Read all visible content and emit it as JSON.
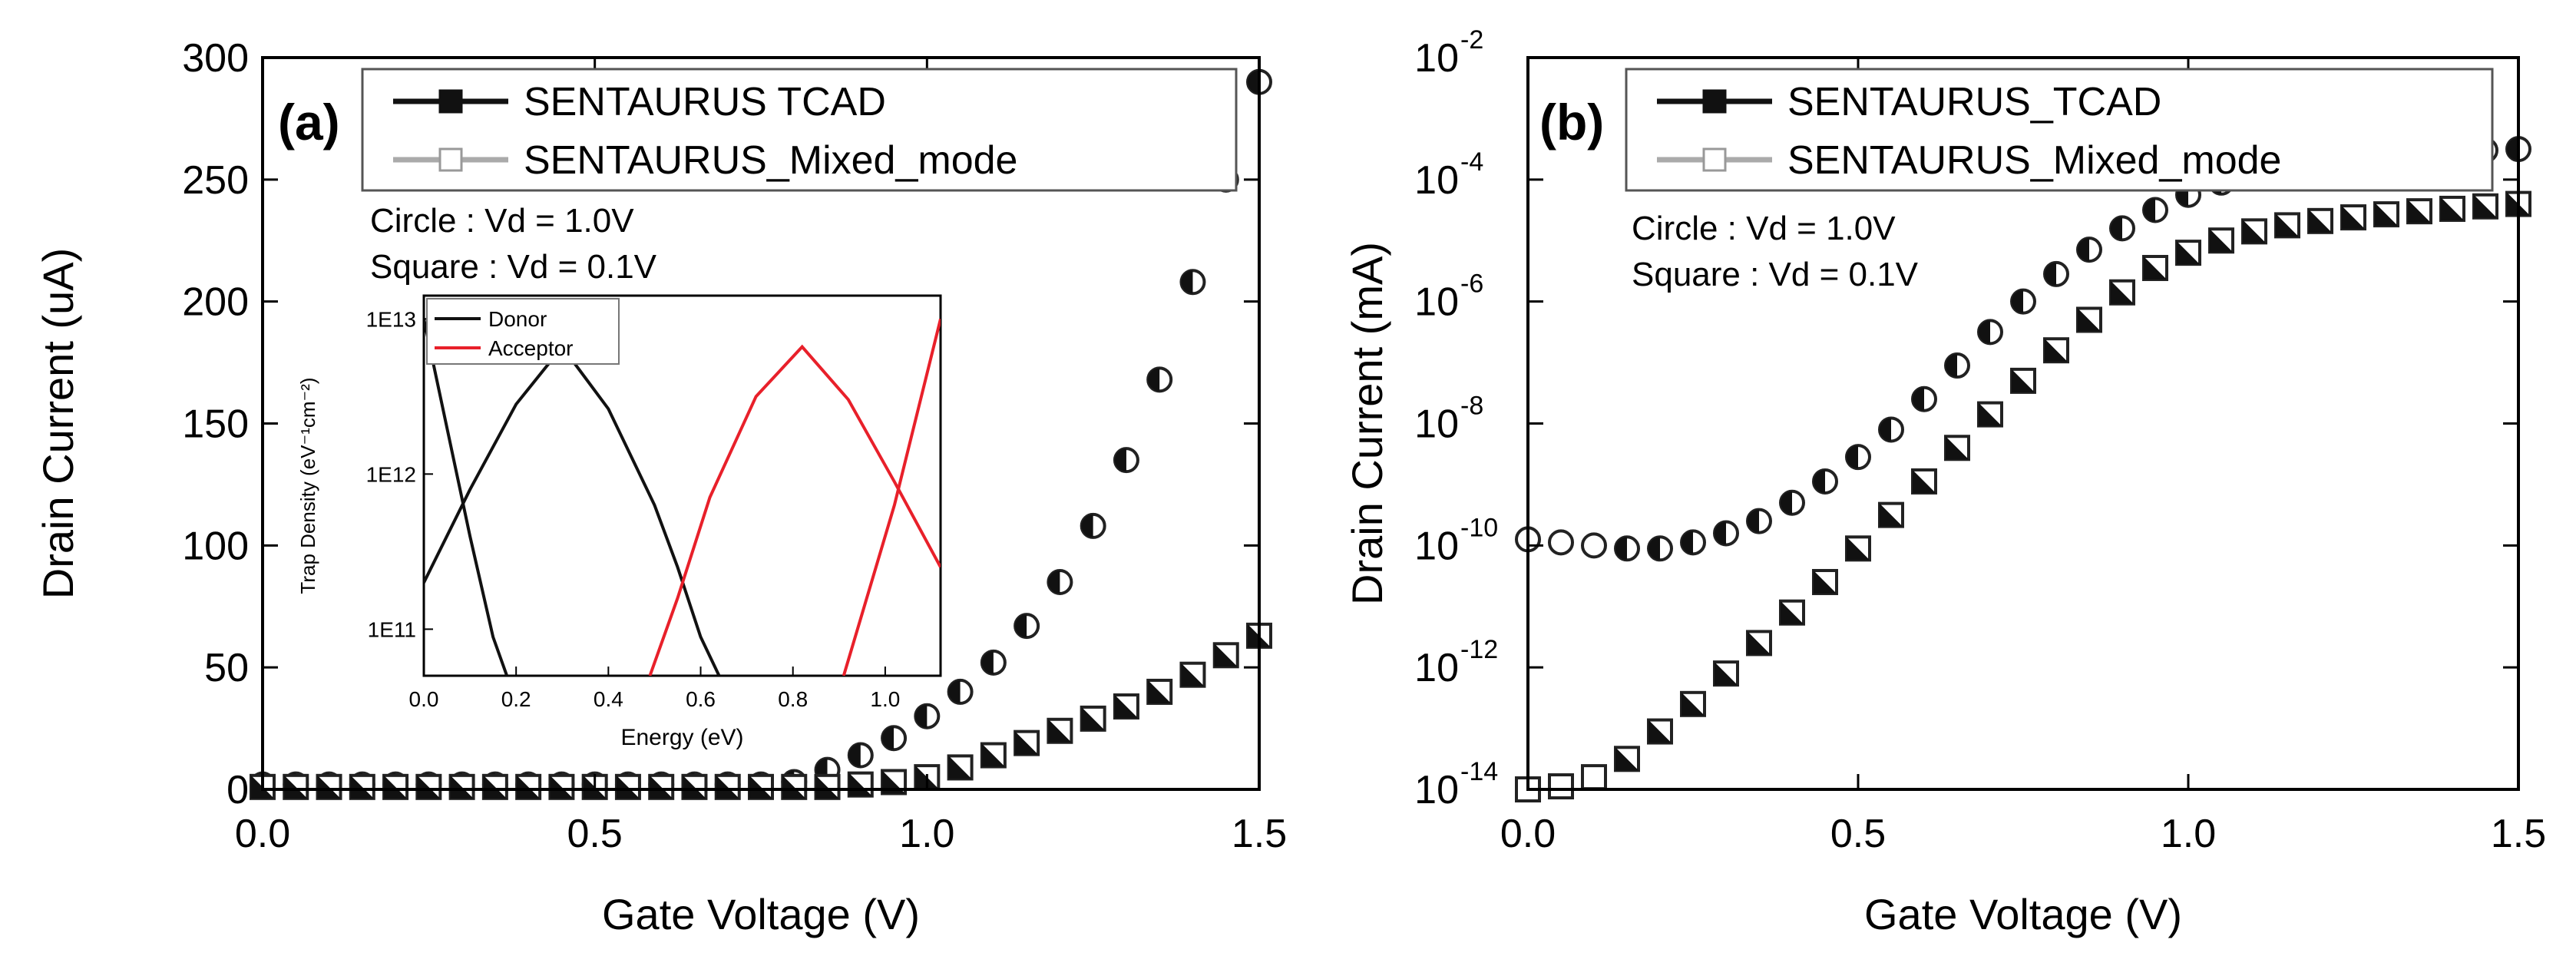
{
  "chart_data": [
    {
      "type": "scatter",
      "panel_label": "(a)",
      "title": "",
      "xlabel": "Gate Voltage (V)",
      "ylabel": "Drain Current (uA)",
      "xlim": [
        0,
        1.5
      ],
      "ylim": [
        0,
        300
      ],
      "xticks": [
        "0.0",
        "0.5",
        "1.0",
        "1.5"
      ],
      "yticks": [
        "0",
        "50",
        "100",
        "150",
        "200",
        "250",
        "300"
      ],
      "legend": {
        "position": "top-right",
        "entries": [
          "SENTAURUS TCAD",
          "SENTAURUS_Mixed_mode"
        ]
      },
      "annotations": [
        "Circle : Vd = 1.0V",
        "Square : Vd = 0.1V"
      ],
      "x": [
        0.0,
        0.05,
        0.1,
        0.15,
        0.2,
        0.25,
        0.3,
        0.35,
        0.4,
        0.45,
        0.5,
        0.55,
        0.6,
        0.65,
        0.7,
        0.75,
        0.8,
        0.85,
        0.9,
        0.95,
        1.0,
        1.05,
        1.1,
        1.15,
        1.2,
        1.25,
        1.3,
        1.35,
        1.4,
        1.45,
        1.5
      ],
      "series": [
        {
          "name": "SENTAURUS TCAD (Circle, Vd = 1.0V)",
          "marker": "circle-half-filled",
          "values": [
            2,
            2,
            2,
            2,
            2,
            2,
            2,
            2,
            2,
            2,
            2,
            2,
            2,
            2,
            2,
            2,
            3,
            8,
            14,
            21,
            30,
            40,
            52,
            67,
            85,
            108,
            135,
            168,
            208,
            250,
            290
          ]
        },
        {
          "name": "SENTAURUS TCAD (Square, Vd = 0.1V)",
          "marker": "square-half-filled",
          "values": [
            1,
            1,
            1,
            1,
            1,
            1,
            1,
            1,
            1,
            1,
            1,
            1,
            1,
            1,
            1,
            1,
            1,
            1,
            2,
            3,
            5,
            9,
            14,
            19,
            24,
            29,
            34,
            40,
            47,
            55,
            63
          ]
        }
      ],
      "inset": {
        "xlabel": "Energy (eV)",
        "ylabel": "Trap Density (eV⁻¹cm⁻²)",
        "xlim": [
          0,
          1.12
        ],
        "ylim_log10": [
          10.7,
          13.15
        ],
        "xticks": [
          "0.0",
          "0.2",
          "0.4",
          "0.6",
          "0.8",
          "1.0"
        ],
        "yticks": [
          "1E11",
          "1E12",
          "1E13"
        ],
        "legend": {
          "position": "top-left",
          "entries": [
            "Donor",
            "Acceptor"
          ]
        },
        "colors": {
          "Donor": "#111111",
          "Acceptor": "#e8202a"
        },
        "series": [
          {
            "name": "Donor",
            "color": "#111111",
            "segments": [
              {
                "x": [
                  0.0,
                  0.05,
                  0.1,
                  0.15,
                  0.18
                ],
                "log10": [
                  13.0,
                  12.3,
                  11.6,
                  10.95,
                  10.7
                ]
              },
              {
                "x": [
                  0.0,
                  0.1,
                  0.2,
                  0.3,
                  0.4,
                  0.5,
                  0.55,
                  0.6,
                  0.64
                ],
                "log10": [
                  11.3,
                  11.9,
                  12.45,
                  12.82,
                  12.42,
                  11.8,
                  11.4,
                  10.95,
                  10.7
                ]
              }
            ]
          },
          {
            "name": "Acceptor",
            "color": "#e8202a",
            "segments": [
              {
                "x": [
                  0.49,
                  0.55,
                  0.62,
                  0.72,
                  0.82,
                  0.92,
                  1.02,
                  1.12
                ],
                "log10": [
                  10.7,
                  11.2,
                  11.85,
                  12.5,
                  12.82,
                  12.48,
                  11.95,
                  11.4
                ]
              },
              {
                "x": [
                  0.91,
                  0.96,
                  1.02,
                  1.07,
                  1.12
                ],
                "log10": [
                  10.7,
                  11.2,
                  11.8,
                  12.4,
                  13.0
                ]
              }
            ]
          }
        ]
      }
    },
    {
      "type": "scatter",
      "panel_label": "(b)",
      "title": "",
      "xlabel": "Gate Voltage (V)",
      "ylabel": "Drain Current (mA)",
      "yscale": "log",
      "xlim": [
        0,
        1.5
      ],
      "ylim_log10": [
        -14,
        -2
      ],
      "xticks": [
        "0.0",
        "0.5",
        "1.0",
        "1.5"
      ],
      "ytick_base": "10",
      "ytick_exponents": [
        "-14",
        "-12",
        "-10",
        "-8",
        "-6",
        "-4",
        "-2"
      ],
      "legend": {
        "position": "top-right",
        "entries": [
          "SENTAURUS_TCAD",
          "SENTAURUS_Mixed_mode"
        ]
      },
      "annotations": [
        "Circle : Vd = 1.0V",
        "Square : Vd = 0.1V"
      ],
      "x": [
        0.0,
        0.05,
        0.1,
        0.15,
        0.2,
        0.25,
        0.3,
        0.35,
        0.4,
        0.45,
        0.5,
        0.55,
        0.6,
        0.65,
        0.7,
        0.75,
        0.8,
        0.85,
        0.9,
        0.95,
        1.0,
        1.05,
        1.1,
        1.15,
        1.2,
        1.25,
        1.3,
        1.35,
        1.4,
        1.45,
        1.5
      ],
      "series": [
        {
          "name": "SENTAURUS_TCAD (Circle, Vd = 1.0V)",
          "marker": "circle-half-filled",
          "values_log10": [
            -9.9,
            -9.95,
            -10.0,
            -10.05,
            -10.05,
            -9.95,
            -9.8,
            -9.6,
            -9.3,
            -8.95,
            -8.55,
            -8.1,
            -7.6,
            -7.05,
            -6.5,
            -6.0,
            -5.55,
            -5.15,
            -4.8,
            -4.5,
            -4.25,
            -4.05,
            -3.9,
            -3.8,
            -3.72,
            -3.66,
            -3.62,
            -3.58,
            -3.55,
            -3.52,
            -3.5
          ]
        },
        {
          "name": "SENTAURUS_TCAD (Square, Vd = 0.1V)",
          "marker": "square-half-filled",
          "values_log10": [
            -14.0,
            -13.95,
            -13.8,
            -13.5,
            -13.05,
            -12.6,
            -12.1,
            -11.6,
            -11.1,
            -10.6,
            -10.05,
            -9.5,
            -8.95,
            -8.4,
            -7.85,
            -7.3,
            -6.8,
            -6.3,
            -5.85,
            -5.45,
            -5.2,
            -5.0,
            -4.85,
            -4.75,
            -4.68,
            -4.62,
            -4.57,
            -4.52,
            -4.48,
            -4.44,
            -4.4
          ]
        }
      ]
    }
  ]
}
